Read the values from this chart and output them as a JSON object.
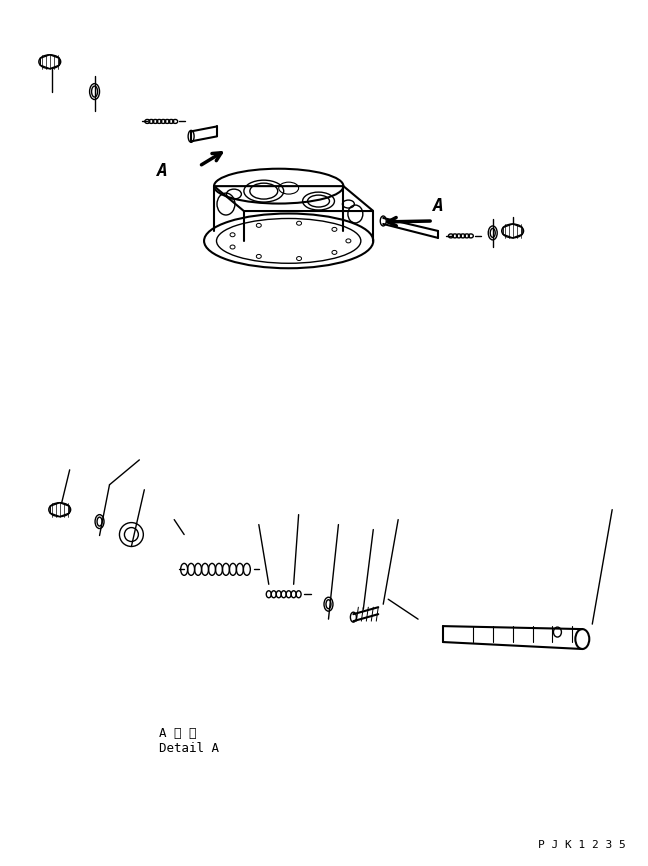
{
  "background_color": "#ffffff",
  "text_color": "#000000",
  "line_color": "#000000",
  "part_code": "P J K 1 2 3 5",
  "label_a1": "A",
  "label_a2": "A",
  "detail_label_jp": "A 詳 細",
  "detail_label_en": "Detail A",
  "figsize": [
    6.48,
    8.66
  ],
  "dpi": 100
}
